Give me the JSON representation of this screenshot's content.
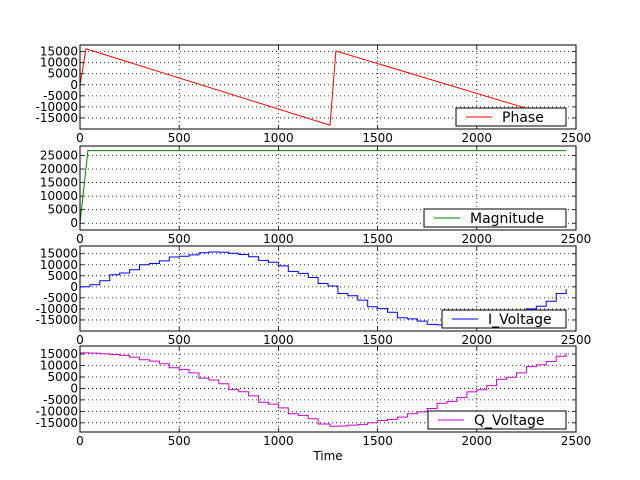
{
  "chart_data": {
    "type": "line",
    "xlabel": "Time",
    "grid": true,
    "legend_placement": "lower right",
    "subplots": [
      {
        "series": [
          {
            "name": "Phase",
            "color": "#ff0000",
            "x": [
              0,
              30,
              1260,
              1290,
              2290
            ],
            "y": [
              0,
              16300,
              -18300,
              15300,
              -11700
            ]
          }
        ],
        "xlim": [
          0,
          2500
        ],
        "ylim": [
          -20000,
          18000
        ],
        "yticks": [
          -15000,
          -10000,
          -5000,
          0,
          5000,
          10000,
          15000
        ],
        "ytick_labels": [
          "-15000",
          "-10000",
          "-5000",
          "0",
          "5000",
          "10000",
          "15000"
        ]
      },
      {
        "series": [
          {
            "name": "Magnitude",
            "color": "#008000",
            "x": [
              0,
              40,
              2450
            ],
            "y": [
              0,
              26800,
              26800
            ]
          }
        ],
        "xlim": [
          0,
          2500
        ],
        "ylim": [
          -2500,
          28500
        ],
        "yticks": [
          0,
          5000,
          10000,
          15000,
          20000,
          25000
        ],
        "ytick_labels": [
          "0",
          "5000",
          "10000",
          "15000",
          "20000",
          "25000"
        ]
      },
      {
        "series": [
          {
            "name": "I_Voltage",
            "color": "#0000ff",
            "stepped": true,
            "x": [
              0,
              150,
              300,
              450,
              600,
              650,
              750,
              900,
              1050,
              1200,
              1300,
              1450,
              1600,
              1750,
              1900,
              2000,
              2100,
              2250,
              2400,
              2450
            ],
            "y": [
              0,
              5500,
              10000,
              13500,
              15400,
              15800,
              15200,
              12000,
              7000,
              1500,
              -3000,
              -9000,
              -14000,
              -17000,
              -18500,
              -18500,
              -16000,
              -10000,
              -3000,
              -1000
            ]
          }
        ],
        "xlim": [
          0,
          2500
        ],
        "ylim": [
          -20000,
          18500
        ],
        "yticks": [
          -15000,
          -10000,
          -5000,
          0,
          5000,
          10000,
          15000
        ],
        "ytick_labels": [
          "-15000",
          "-10000",
          "-5000",
          "0",
          "5000",
          "10000",
          "15000"
        ]
      },
      {
        "series": [
          {
            "name": "Q_Voltage",
            "color": "#cc00cc",
            "stepped": true,
            "x": [
              0,
              150,
              300,
              450,
              600,
              750,
              900,
              1050,
              1200,
              1260,
              1350,
              1500,
              1650,
              1800,
              1950,
              2100,
              2250,
              2400,
              2450
            ],
            "y": [
              15500,
              14800,
              12500,
              9000,
              4500,
              -500,
              -6000,
              -11000,
              -15500,
              -16500,
              -16000,
              -14000,
              -11000,
              -6500,
              -1500,
              4000,
              9500,
              14000,
              15500
            ]
          }
        ],
        "xlim": [
          0,
          2500
        ],
        "ylim": [
          -19000,
          18500
        ],
        "yticks": [
          -15000,
          -10000,
          -5000,
          0,
          5000,
          10000,
          15000
        ],
        "ytick_labels": [
          "-15000",
          "-10000",
          "-5000",
          "0",
          "5000",
          "10000",
          "15000"
        ]
      }
    ],
    "xticks": [
      0,
      500,
      1000,
      1500,
      2000,
      2500
    ],
    "xtick_labels": [
      "0",
      "500",
      "1000",
      "1500",
      "2000",
      "2500"
    ]
  }
}
